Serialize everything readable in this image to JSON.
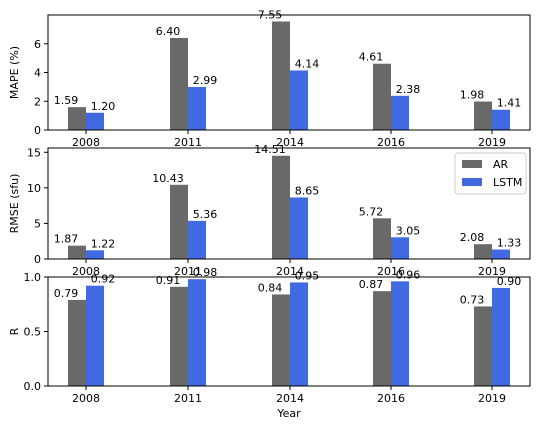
{
  "chart_data": {
    "type": "bar",
    "categories": [
      "2008",
      "2011",
      "2014",
      "2016",
      "2019"
    ],
    "xlabel": "Year",
    "colors": {
      "AR": "#696969",
      "LSTM": "#4169e1"
    },
    "legend": {
      "placement": "upper-right",
      "panel": 1,
      "entries": [
        "AR",
        "LSTM"
      ]
    },
    "panels": [
      {
        "ylabel": "MAPE (%)",
        "ylim": [
          0,
          8.0
        ],
        "yticks": [
          "0",
          "2",
          "4",
          "6"
        ],
        "series": [
          {
            "name": "AR",
            "values": [
              1.59,
              6.4,
              7.55,
              4.61,
              1.98
            ],
            "labels": [
              "1.59",
              "6.40",
              "7.55",
              "4.61",
              "1.98"
            ]
          },
          {
            "name": "LSTM",
            "values": [
              1.2,
              2.99,
              4.14,
              2.38,
              1.41
            ],
            "labels": [
              "1.20",
              "2.99",
              "4.14",
              "2.38",
              "1.41"
            ]
          }
        ]
      },
      {
        "ylabel": "RMSE (sfu)",
        "ylim": [
          0,
          15.6
        ],
        "yticks": [
          "0",
          "5",
          "10",
          "15"
        ],
        "series": [
          {
            "name": "AR",
            "values": [
              1.87,
              10.43,
              14.51,
              5.72,
              2.08
            ],
            "labels": [
              "1.87",
              "10.43",
              "14.51",
              "5.72",
              "2.08"
            ]
          },
          {
            "name": "LSTM",
            "values": [
              1.22,
              5.36,
              8.65,
              3.05,
              1.33
            ],
            "labels": [
              "1.22",
              "5.36",
              "8.65",
              "3.05",
              "1.33"
            ]
          }
        ]
      },
      {
        "ylabel": "R",
        "ylim": [
          0,
          1.0
        ],
        "yticks": [
          "0.0",
          "0.5",
          "1.0"
        ],
        "series": [
          {
            "name": "AR",
            "values": [
              0.79,
              0.91,
              0.84,
              0.87,
              0.73
            ],
            "labels": [
              "0.79",
              "0.91",
              "0.84",
              "0.87",
              "0.73"
            ]
          },
          {
            "name": "LSTM",
            "values": [
              0.92,
              0.98,
              0.95,
              0.96,
              0.9
            ],
            "labels": [
              "0.92",
              "0.98",
              "0.95",
              "0.96",
              "0.90"
            ]
          }
        ]
      }
    ]
  }
}
